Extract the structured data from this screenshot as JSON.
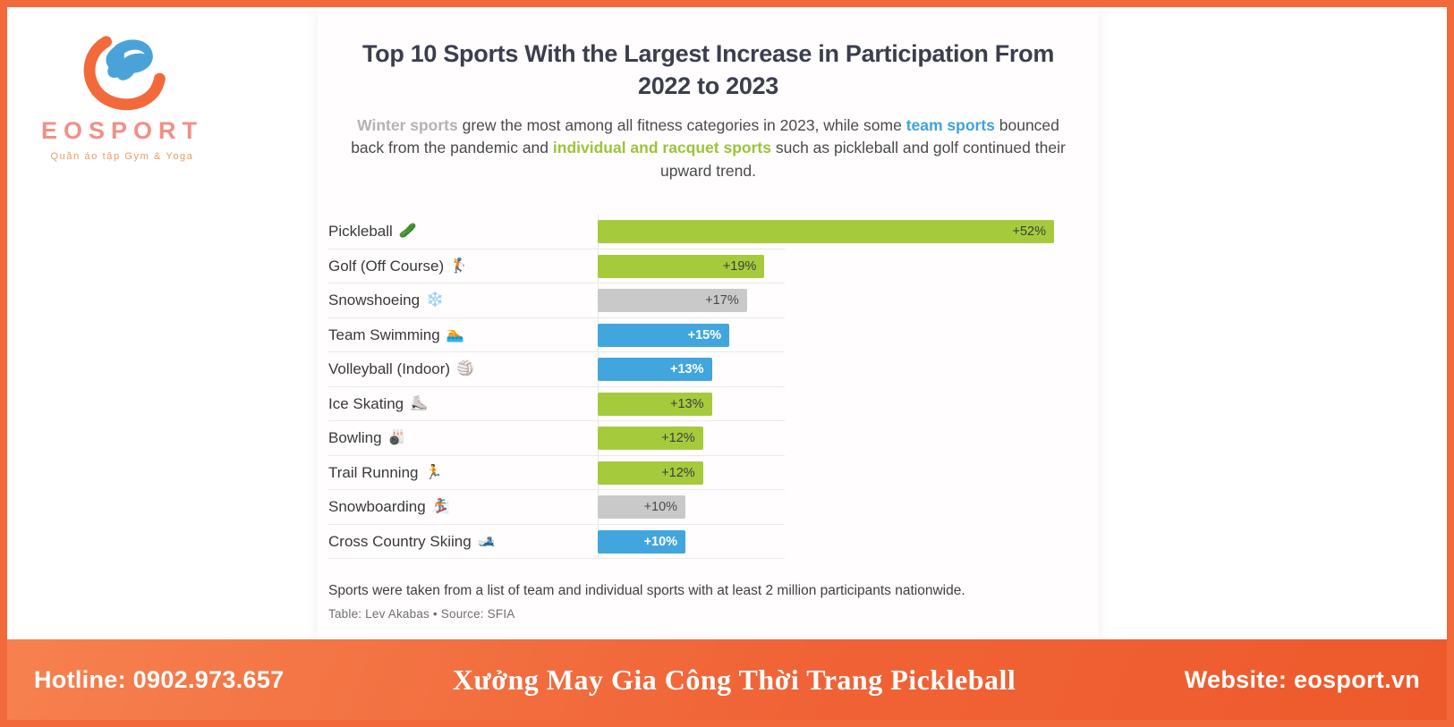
{
  "brand": {
    "name": "EOSPORT",
    "tagline": "Quần áo tập Gym & Yoga"
  },
  "footer": {
    "hotline": "Hotline: 0902.973.657",
    "center": "Xưởng May Gia Công Thời Trang Pickleball",
    "website": "Website: eosport.vn"
  },
  "chart_data": {
    "type": "bar",
    "orientation": "horizontal",
    "title": "Top 10 Sports With the Largest Increase in Participation From 2022 to 2023",
    "subtitle_segments": [
      {
        "text": "Winter sports",
        "color": "#b3b3b3",
        "bold": true
      },
      {
        "text": " grew the most among all fitness categories in 2023, while some ",
        "color": "#4a4a4a",
        "bold": false
      },
      {
        "text": "team sports",
        "color": "#3fa3dc",
        "bold": true
      },
      {
        "text": " bounced back from the pandemic and ",
        "color": "#4a4a4a",
        "bold": false
      },
      {
        "text": "individual and racquet sports",
        "color": "#9cc43a",
        "bold": true
      },
      {
        "text": " such as pickleball and golf continued their upward trend.",
        "color": "#4a4a4a",
        "bold": false
      }
    ],
    "categories": [
      "Pickleball",
      "Golf (Off Course)",
      "Snowshoeing",
      "Team Swimming",
      "Volleyball (Indoor)",
      "Ice Skating",
      "Bowling",
      "Trail Running",
      "Snowboarding",
      "Cross Country Skiing"
    ],
    "values": [
      52,
      19,
      17,
      15,
      13,
      13,
      12,
      12,
      10,
      10
    ],
    "labels": [
      "+52%",
      "+19%",
      "+17%",
      "+15%",
      "+13%",
      "+13%",
      "+12%",
      "+12%",
      "+10%",
      "+10%"
    ],
    "icons": [
      "🥒",
      "🏌️",
      "❄️",
      "🏊",
      "🏐",
      "⛸️",
      "🎳",
      "🏃",
      "🏂",
      "🎿"
    ],
    "colors": [
      "green",
      "green",
      "gray",
      "blue",
      "blue",
      "green",
      "green",
      "green",
      "gray",
      "blue"
    ],
    "palette": {
      "green": "#a5cb3d",
      "blue": "#42a6de",
      "gray": "#c9c9c9"
    },
    "value_text_colors": {
      "green": "#3d3d3d",
      "gray": "#4a4a4a",
      "blue": "#ffffff"
    },
    "xlim": [
      0,
      52
    ],
    "grid": false,
    "legend": "none",
    "note": "Sports were taken from a list of team and individual sports with at least 2 million participants nationwide.",
    "byline": "Table: Lev Akabas • Source: SFIA"
  }
}
